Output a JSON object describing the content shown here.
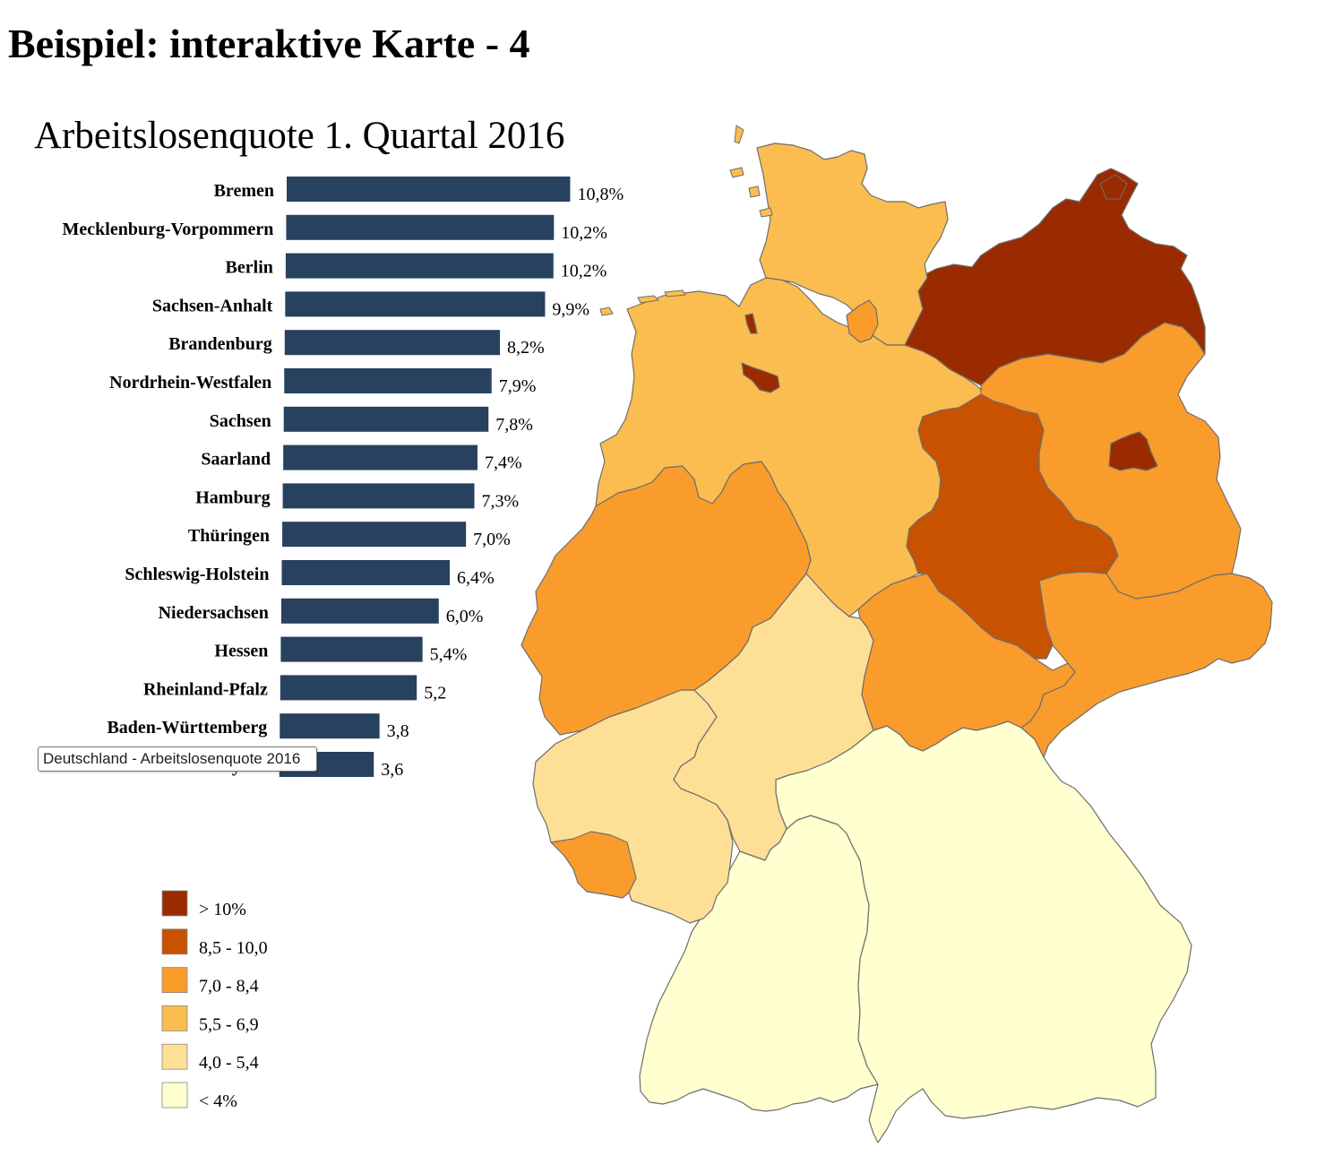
{
  "page": {
    "title": "Beispiel: interaktive Karte - 4"
  },
  "tooltip": {
    "text": "Deutschland - Arbeitslosenquote 2016"
  },
  "chart_data": {
    "type": "bar",
    "orientation": "horizontal",
    "title": "Arbeitslosenquote 1. Quartal 2016",
    "bar_color": "#27415f",
    "categories": [
      "Bremen",
      "Mecklenburg-Vorpommern",
      "Berlin",
      "Sachsen-Anhalt",
      "Brandenburg",
      "Nordrhein-Westfalen",
      "Sachsen",
      "Saarland",
      "Hamburg",
      "Thüringen",
      "Schleswig-Holstein",
      "Niedersachsen",
      "Hessen",
      "Rheinland-Pfalz",
      "Baden-Württemberg",
      "Bayern"
    ],
    "values": [
      10.8,
      10.2,
      10.2,
      9.9,
      8.2,
      7.9,
      7.8,
      7.4,
      7.3,
      7.0,
      6.4,
      6.0,
      5.4,
      5.2,
      3.8,
      3.6
    ],
    "value_labels": [
      "10,8%",
      "10,2%",
      "10,2%",
      "9,9%",
      "8,2%",
      "7,9%",
      "7,8%",
      "7,4%",
      "7,3%",
      "7,0%",
      "6,4%",
      "6,0%",
      "5,4%",
      "5,2",
      "3,8",
      "3,6"
    ]
  },
  "legend": {
    "items": [
      {
        "label": "> 10%",
        "color": "#9a2b00"
      },
      {
        "label": "8,5 - 10,0",
        "color": "#c85200"
      },
      {
        "label": "7,0 - 8,4",
        "color": "#f99c2c"
      },
      {
        "label": "5,5 - 6,9",
        "color": "#fbbd4f"
      },
      {
        "label": "4,0 - 5,4",
        "color": "#fde095"
      },
      {
        "label": "< 4%",
        "color": "#ffffcf"
      }
    ]
  },
  "map": {
    "states": [
      {
        "name": "Schleswig-Holstein",
        "color": "#fbbd4f"
      },
      {
        "name": "Mecklenburg-Vorpommern",
        "color": "#9a2b00"
      },
      {
        "name": "Hamburg",
        "color": "#f99c2c"
      },
      {
        "name": "Bremen",
        "color": "#9a2b00"
      },
      {
        "name": "Niedersachsen",
        "color": "#fbbd4f"
      },
      {
        "name": "Brandenburg",
        "color": "#f99c2c"
      },
      {
        "name": "Berlin",
        "color": "#9a2b00"
      },
      {
        "name": "Sachsen-Anhalt",
        "color": "#c85200"
      },
      {
        "name": "Nordrhein-Westfalen",
        "color": "#f99c2c"
      },
      {
        "name": "Hessen",
        "color": "#fde095"
      },
      {
        "name": "Thüringen",
        "color": "#f99c2c"
      },
      {
        "name": "Sachsen",
        "color": "#f99c2c"
      },
      {
        "name": "Rheinland-Pfalz",
        "color": "#fde095"
      },
      {
        "name": "Saarland",
        "color": "#f99c2c"
      },
      {
        "name": "Baden-Württemberg",
        "color": "#ffffcf"
      },
      {
        "name": "Bayern",
        "color": "#ffffcf"
      }
    ]
  }
}
